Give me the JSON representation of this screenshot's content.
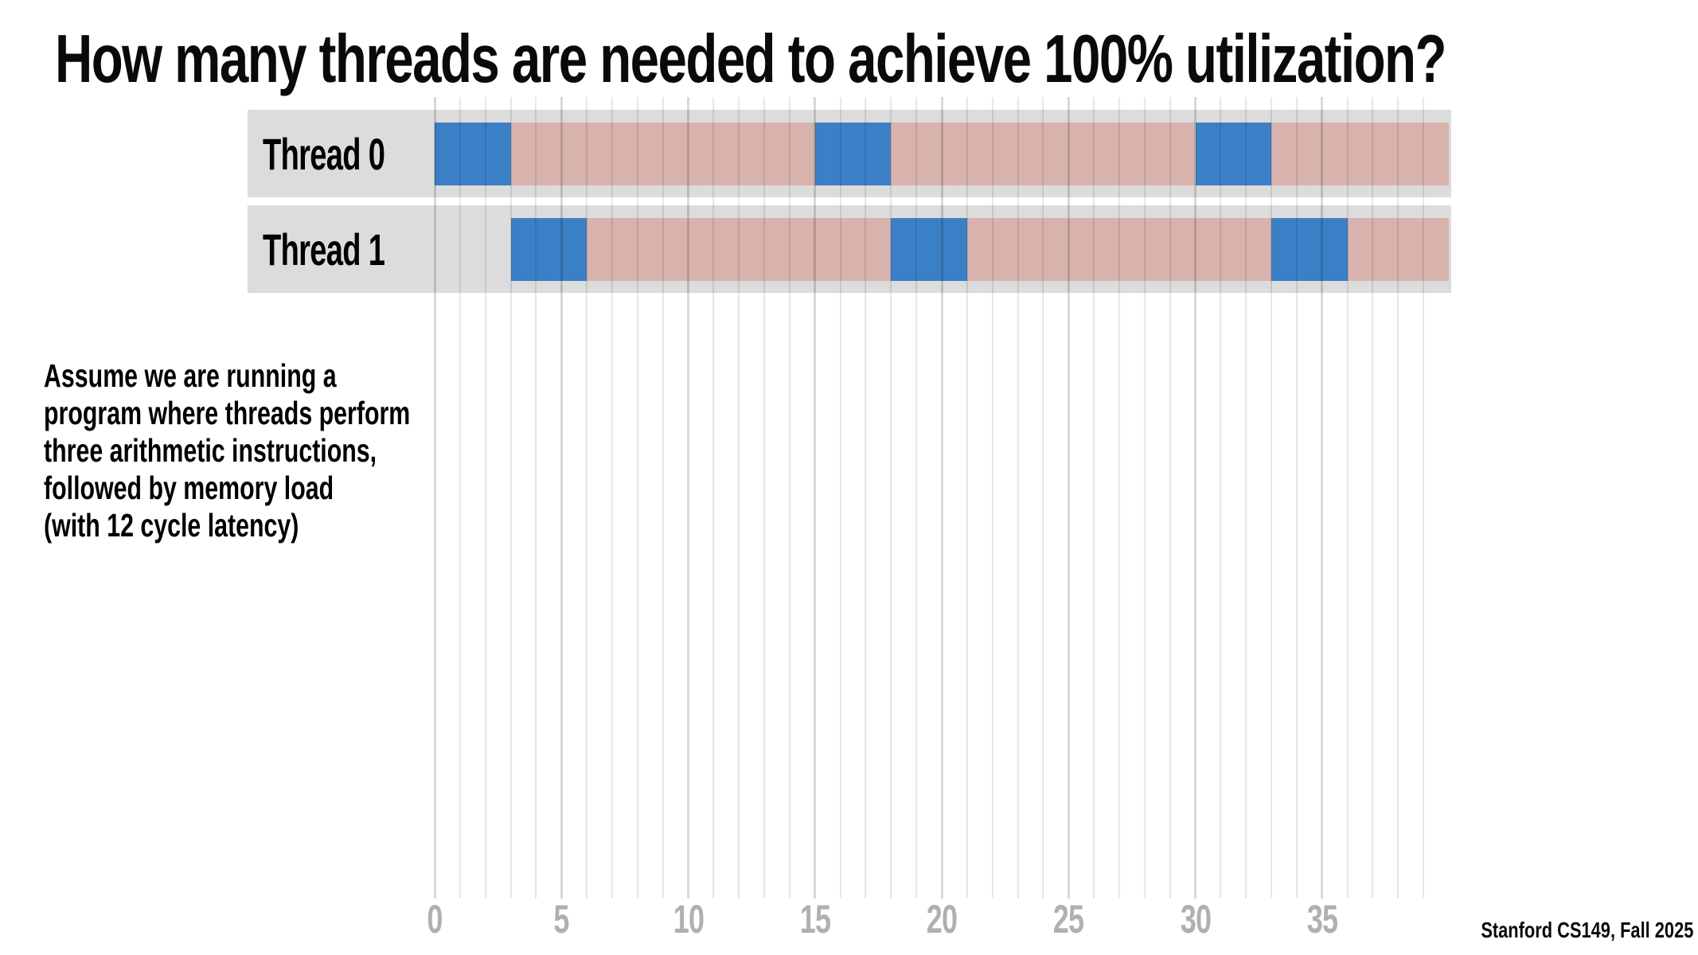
{
  "slide": {
    "title": "How many threads are needed to achieve 100% utilization?",
    "description": {
      "lines": [
        "Assume we are running a",
        "program where threads perform",
        "three arithmetic instructions,",
        "followed by memory load",
        "(with 12 cycle latency)"
      ]
    },
    "footer": "Stanford CS149, Fall 2025"
  },
  "colors": {
    "compute_blue": "#3b7fc6",
    "stall_pink": "#d8b2ac",
    "band_gray": "#dcdcdc",
    "axis_label_gray": "#b0b0b0",
    "gridline_minor": "#e6e6e6",
    "gridline_major": "#d8d8d8",
    "text_black": "#0a0a0a"
  },
  "chart_data": {
    "type": "timeline",
    "title": "How many threads are needed to achieve 100% utilization?",
    "xlabel": "",
    "ylabel": "",
    "x_range": [
      0,
      40
    ],
    "gridline_every": 1,
    "gridline_count": 40,
    "major_tick_every": 5,
    "x_tick_labels": [
      0,
      5,
      10,
      15,
      20,
      25,
      30,
      35
    ],
    "legend": [],
    "rows": [
      {
        "label": "Thread 0",
        "segments": [
          {
            "start": 0,
            "end": 3,
            "kind": "compute"
          },
          {
            "start": 3,
            "end": 15,
            "kind": "stall"
          },
          {
            "start": 15,
            "end": 18,
            "kind": "compute"
          },
          {
            "start": 18,
            "end": 30,
            "kind": "stall"
          },
          {
            "start": 30,
            "end": 33,
            "kind": "compute"
          },
          {
            "start": 33,
            "end": 40,
            "kind": "stall"
          }
        ]
      },
      {
        "label": "Thread 1",
        "segments": [
          {
            "start": 3,
            "end": 6,
            "kind": "compute"
          },
          {
            "start": 6,
            "end": 18,
            "kind": "stall"
          },
          {
            "start": 18,
            "end": 21,
            "kind": "compute"
          },
          {
            "start": 21,
            "end": 33,
            "kind": "stall"
          },
          {
            "start": 33,
            "end": 36,
            "kind": "compute"
          },
          {
            "start": 36,
            "end": 40,
            "kind": "stall"
          }
        ]
      }
    ]
  }
}
